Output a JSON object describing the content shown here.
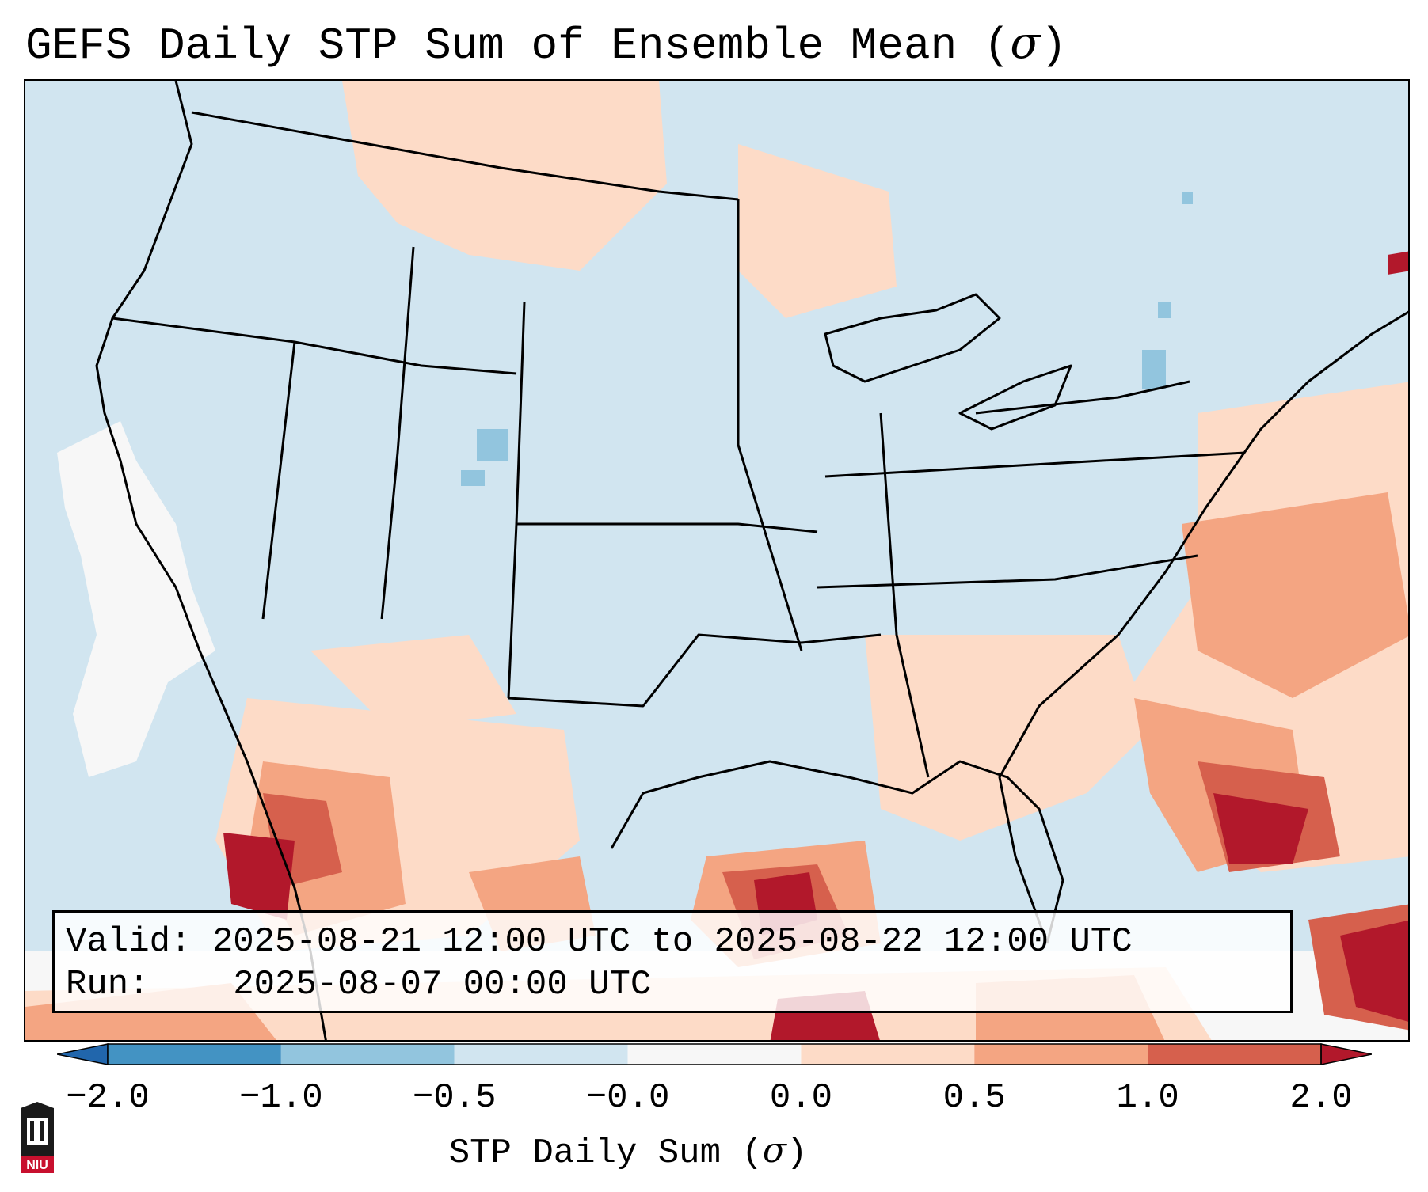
{
  "title": {
    "text": "GEFS Daily STP Sum of Ensemble Mean (",
    "symbol": "σ",
    "close": ")"
  },
  "info": {
    "valid_label": "Valid:",
    "valid_value": "2025-08-21 12:00 UTC to 2025-08-22 12:00 UTC",
    "run_label": "Run:",
    "run_value": "2025-08-07 00:00 UTC"
  },
  "colorbar": {
    "label_text": "STP Daily Sum (",
    "label_symbol": "σ",
    "label_close": ")",
    "ticks": [
      "−2.0",
      "−1.0",
      "−0.5",
      "−0.0",
      "0.0",
      "0.5",
      "1.0",
      "2.0"
    ],
    "bins": [
      {
        "range": "< -2.0",
        "color": "#2166ac"
      },
      {
        "range": "-2.0 to -1.0",
        "color": "#4393c3"
      },
      {
        "range": "-1.0 to -0.5",
        "color": "#92c5de"
      },
      {
        "range": "-0.5 to -0.0",
        "color": "#d1e5f0"
      },
      {
        "range": "-0.0 to 0.0",
        "color": "#f7f7f7"
      },
      {
        "range": "0.0 to 0.5",
        "color": "#fddbc7"
      },
      {
        "range": "0.5 to 1.0",
        "color": "#f4a582"
      },
      {
        "range": "1.0 to 2.0",
        "color": "#d6604d"
      },
      {
        "range": "> 2.0",
        "color": "#b2182b"
      }
    ]
  },
  "map": {
    "region": "Continental United States",
    "background_color": "#d1e5f0",
    "boundary_color": "#000000"
  },
  "logo": {
    "text": "NIU",
    "color": "#c8102e"
  }
}
